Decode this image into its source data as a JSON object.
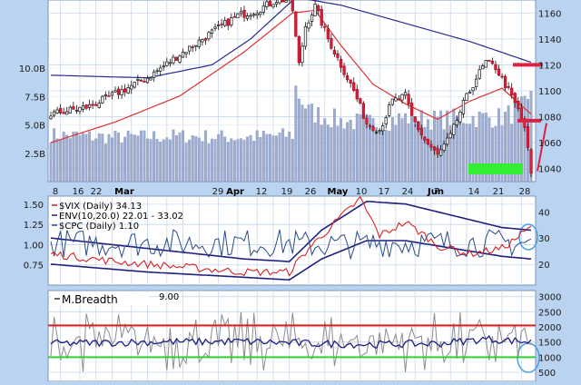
{
  "chart_data": [
    {
      "type": "candlestick",
      "title": "",
      "price_axis": {
        "ticks": [
          1040,
          1060,
          1080,
          1100,
          1120,
          1140,
          1160
        ],
        "range": [
          1030,
          1170
        ]
      },
      "volume_axis": {
        "ticks": [
          "2.5B",
          "5.0B",
          "7.5B",
          "10.0B"
        ],
        "values": [
          2.5,
          5.0,
          7.5,
          10.0
        ],
        "range": [
          0,
          16
        ]
      },
      "date_axis": {
        "day_ticks": [
          "8",
          "16",
          "22",
          "29",
          "12",
          "19",
          "26",
          "10",
          "17",
          "24",
          "7",
          "14",
          "21",
          "28"
        ],
        "month_labels": [
          "Mar",
          "Apr",
          "May",
          "Jun"
        ]
      },
      "price_key": [
        [
          0,
          1082
        ],
        [
          12,
          1088
        ],
        [
          22,
          1100
        ],
        [
          30,
          1110
        ],
        [
          40,
          1128
        ],
        [
          50,
          1145
        ],
        [
          58,
          1158
        ],
        [
          64,
          1162
        ],
        [
          70,
          1170
        ],
        [
          74,
          1170
        ],
        [
          75,
          1162
        ],
        [
          77,
          1120
        ],
        [
          79,
          1150
        ],
        [
          82,
          1165
        ],
        [
          86,
          1140
        ],
        [
          90,
          1120
        ],
        [
          94,
          1100
        ],
        [
          98,
          1075
        ],
        [
          102,
          1070
        ],
        [
          106,
          1092
        ],
        [
          110,
          1096
        ],
        [
          112,
          1080
        ],
        [
          116,
          1062
        ],
        [
          120,
          1050
        ],
        [
          124,
          1065
        ],
        [
          128,
          1090
        ],
        [
          132,
          1110
        ],
        [
          135,
          1122
        ],
        [
          138,
          1118
        ],
        [
          142,
          1100
        ],
        [
          145,
          1085
        ],
        [
          147,
          1072
        ],
        [
          149,
          1036
        ]
      ],
      "ema_fast_key": [
        [
          0,
          1060
        ],
        [
          20,
          1076
        ],
        [
          40,
          1096
        ],
        [
          60,
          1130
        ],
        [
          75,
          1160
        ],
        [
          82,
          1162
        ],
        [
          90,
          1135
        ],
        [
          100,
          1105
        ],
        [
          110,
          1090
        ],
        [
          120,
          1078
        ],
        [
          130,
          1092
        ],
        [
          140,
          1102
        ],
        [
          149,
          1082
        ]
      ],
      "ema_slow_key": [
        [
          0,
          1112
        ],
        [
          30,
          1110
        ],
        [
          50,
          1120
        ],
        [
          62,
          1140
        ],
        [
          76,
          1172
        ],
        [
          90,
          1166
        ],
        [
          110,
          1152
        ],
        [
          130,
          1138
        ],
        [
          149,
          1122
        ]
      ],
      "volume_key": [
        [
          0,
          4.0
        ],
        [
          20,
          3.8
        ],
        [
          40,
          3.9
        ],
        [
          60,
          3.8
        ],
        [
          75,
          4.0
        ],
        [
          76,
          8.0
        ],
        [
          80,
          6.0
        ],
        [
          90,
          5.2
        ],
        [
          100,
          5.0
        ],
        [
          110,
          5.5
        ],
        [
          120,
          5.3
        ],
        [
          130,
          5.5
        ],
        [
          140,
          5.5
        ],
        [
          148,
          6.5
        ],
        [
          149,
          8.0
        ]
      ],
      "annotations": [
        "support-line-1120",
        "support-line-1078",
        "trend-line",
        "volume-box"
      ]
    },
    {
      "type": "line",
      "title": "",
      "left_axis": {
        "ticks": [
          0.75,
          1.0,
          1.25,
          1.5
        ],
        "range": [
          0.5,
          1.6
        ]
      },
      "right_axis": {
        "ticks": [
          20,
          30,
          40
        ],
        "range": [
          12,
          46
        ]
      },
      "legend_placement": "top-left",
      "legend": [
        {
          "label": "$VIX (Daily) 34.13",
          "color": "#d92424"
        },
        {
          "label": "ENV(10,20.0) 22.01 - 33.02",
          "color": "#202080"
        },
        {
          "label": "$CPC (Daily) 1.10",
          "color": "#2a4a8a"
        }
      ],
      "series": [
        {
          "key": "vix",
          "key_points": [
            [
              0,
              24
            ],
            [
              20,
              21
            ],
            [
              40,
              19
            ],
            [
              60,
              17
            ],
            [
              74,
              17
            ],
            [
              80,
              26
            ],
            [
              90,
              38
            ],
            [
              96,
              45
            ],
            [
              102,
              31
            ],
            [
              110,
              36
            ],
            [
              116,
              31
            ],
            [
              120,
              27
            ],
            [
              130,
              24
            ],
            [
              140,
              26
            ],
            [
              149,
              34
            ]
          ]
        },
        {
          "key": "env_upper",
          "key_points": [
            [
              0,
              30
            ],
            [
              30,
              26
            ],
            [
              60,
              22
            ],
            [
              74,
              21
            ],
            [
              84,
              33
            ],
            [
              98,
              44
            ],
            [
              110,
              43
            ],
            [
              120,
              40
            ],
            [
              130,
              37
            ],
            [
              140,
              34
            ],
            [
              149,
              33
            ]
          ]
        },
        {
          "key": "env_lower",
          "key_points": [
            [
              0,
              20
            ],
            [
              30,
              17
            ],
            [
              60,
              15
            ],
            [
              74,
              14
            ],
            [
              84,
              22
            ],
            [
              98,
              29
            ],
            [
              110,
              29
            ],
            [
              120,
              27
            ],
            [
              130,
              25
            ],
            [
              140,
              23
            ],
            [
              149,
              22
            ]
          ]
        },
        {
          "key": "cpc",
          "key_points": [
            [
              0,
              1.0
            ],
            [
              149,
              1.1
            ]
          ]
        }
      ]
    },
    {
      "type": "line",
      "title": "",
      "legend": [
        {
          "label": "M.Breadth",
          "value": "9.00"
        }
      ],
      "right_axis": {
        "ticks": [
          500,
          1000,
          1500,
          2000,
          2500,
          3000
        ],
        "range": [
          200,
          3200
        ]
      },
      "reference_lines": [
        {
          "value": 2050,
          "color": "#e02020"
        },
        {
          "value": 1000,
          "color": "#30d030"
        }
      ],
      "series": [
        {
          "key": "breadth",
          "color": "#8c8c8c"
        },
        {
          "key": "breadth_ma",
          "color": "#202080",
          "key_points": [
            [
              0,
              1450
            ],
            [
              30,
              1500
            ],
            [
              60,
              1520
            ],
            [
              80,
              1450
            ],
            [
              100,
              1420
            ],
            [
              120,
              1450
            ],
            [
              135,
              1600
            ],
            [
              149,
              1500
            ]
          ]
        }
      ]
    }
  ]
}
